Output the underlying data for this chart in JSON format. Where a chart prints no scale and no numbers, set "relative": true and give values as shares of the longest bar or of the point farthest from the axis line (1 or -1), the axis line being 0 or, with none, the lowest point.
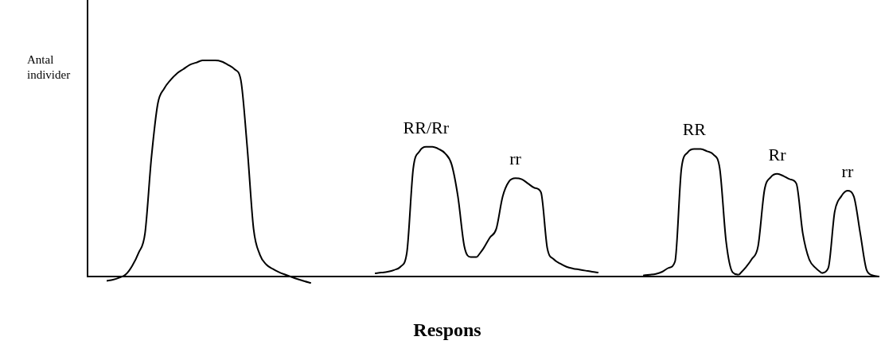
{
  "chart_data": {
    "type": "line",
    "xlabel": "Respons",
    "ylabel": "Antal individer",
    "relative": true,
    "legend": false,
    "tick_labels": false,
    "marker": "none",
    "categories": [
      null,
      null,
      null,
      null,
      null,
      null,
      null,
      null,
      null,
      null,
      null,
      null,
      null,
      null,
      null,
      null,
      null,
      null,
      null,
      null,
      null,
      null,
      null,
      null,
      null,
      null,
      null,
      null,
      null,
      null,
      null,
      null,
      null,
      null,
      null,
      null,
      null,
      null,
      null,
      null,
      null,
      null,
      null,
      null,
      null,
      null,
      null,
      null,
      null,
      null,
      null,
      null,
      null,
      null,
      null,
      null,
      null,
      null,
      null,
      null,
      null,
      null,
      null,
      null,
      null,
      null,
      null,
      null,
      null,
      null,
      null,
      null,
      null,
      null,
      null,
      null,
      null,
      null,
      null,
      null,
      null,
      null,
      null,
      null,
      null,
      null,
      null,
      null,
      null,
      null,
      null,
      null,
      null,
      null,
      null,
      null,
      null,
      null,
      null,
      null,
      null,
      null,
      null,
      null,
      null,
      null,
      null,
      null,
      null,
      null,
      null,
      null,
      null,
      null,
      null,
      null,
      null,
      null,
      null,
      null,
      null,
      null,
      null,
      null,
      null
    ],
    "series": [
      {
        "color": "#000000",
        "values": [
          null,
          null,
          null,
          -0.02,
          -0.015,
          -0.005,
          0.01,
          0.05,
          0.11,
          0.2,
          0.55,
          0.8,
          0.87,
          0.91,
          0.94,
          0.96,
          0.98,
          0.99,
          1.0,
          1.0,
          1.0,
          0.995,
          0.98,
          0.96,
          0.91,
          0.6,
          0.22,
          0.1,
          0.055,
          0.035,
          0.02,
          0.008,
          -0.003,
          -0.013,
          -0.022,
          -0.03,
          null,
          null,
          null,
          null,
          null,
          null,
          null,
          null,
          null,
          null,
          null,
          null,
          null,
          null,
          null,
          null,
          null,
          null,
          null,
          null,
          null,
          null,
          null,
          null,
          null,
          null,
          null,
          null,
          null,
          null,
          null,
          null,
          null,
          null,
          null,
          null,
          null,
          null,
          null,
          null,
          null,
          null,
          null,
          null,
          null,
          null,
          null,
          null,
          null,
          null,
          null,
          null,
          null,
          null,
          null,
          null,
          null,
          null,
          null,
          null,
          null,
          null,
          null,
          null,
          null,
          null,
          null,
          null,
          null,
          null,
          null,
          null,
          null,
          null,
          null,
          null,
          null,
          null,
          null,
          null,
          null,
          null,
          null,
          null,
          null,
          null,
          null,
          null,
          null
        ]
      },
      {
        "name": "RR/Rr",
        "color": "#000000",
        "values": [
          null,
          null,
          null,
          null,
          null,
          null,
          null,
          null,
          null,
          null,
          null,
          null,
          null,
          null,
          null,
          null,
          null,
          null,
          null,
          null,
          null,
          null,
          null,
          null,
          null,
          null,
          null,
          null,
          null,
          null,
          null,
          null,
          null,
          null,
          null,
          null,
          null,
          null,
          null,
          null,
          null,
          null,
          null,
          null,
          null,
          0.015,
          0.018,
          0.022,
          0.03,
          0.045,
          0.11,
          0.5,
          0.58,
          0.6,
          0.6,
          0.59,
          0.57,
          0.52,
          0.37,
          0.14,
          0.09,
          0.09,
          null,
          null,
          null,
          null,
          null,
          null,
          null,
          null,
          null,
          null,
          null,
          null,
          null,
          null,
          null,
          null,
          null,
          null,
          null,
          null,
          null,
          null,
          null,
          null,
          null,
          null,
          null,
          null,
          null,
          null,
          null,
          null,
          null,
          null,
          null,
          null,
          null,
          null,
          null,
          null,
          null,
          null,
          null,
          null,
          null,
          null,
          null,
          null,
          null,
          null,
          null,
          null,
          null,
          null,
          null,
          null,
          null,
          null,
          null,
          null,
          null,
          null,
          null
        ]
      },
      {
        "name": "rr",
        "color": "#000000",
        "values": [
          null,
          null,
          null,
          null,
          null,
          null,
          null,
          null,
          null,
          null,
          null,
          null,
          null,
          null,
          null,
          null,
          null,
          null,
          null,
          null,
          null,
          null,
          null,
          null,
          null,
          null,
          null,
          null,
          null,
          null,
          null,
          null,
          null,
          null,
          null,
          null,
          null,
          null,
          null,
          null,
          null,
          null,
          null,
          null,
          null,
          null,
          null,
          null,
          null,
          null,
          null,
          null,
          null,
          null,
          null,
          null,
          null,
          null,
          null,
          null,
          null,
          0.09,
          0.13,
          0.18,
          0.22,
          0.37,
          0.44,
          0.455,
          0.45,
          0.43,
          0.41,
          0.39,
          0.13,
          0.08,
          0.06,
          0.045,
          0.037,
          0.032,
          0.027,
          0.022,
          0.018,
          null,
          null,
          null,
          null,
          null,
          null,
          null,
          null,
          null,
          null,
          null,
          null,
          null,
          null,
          null,
          null,
          null,
          null,
          null,
          null,
          null,
          null,
          null,
          null,
          null,
          null,
          null,
          null,
          null,
          null,
          null,
          null,
          null,
          null,
          null,
          null,
          null,
          null,
          null,
          null,
          null,
          null,
          null,
          null
        ]
      },
      {
        "name": "RR",
        "color": "#000000",
        "values": [
          null,
          null,
          null,
          null,
          null,
          null,
          null,
          null,
          null,
          null,
          null,
          null,
          null,
          null,
          null,
          null,
          null,
          null,
          null,
          null,
          null,
          null,
          null,
          null,
          null,
          null,
          null,
          null,
          null,
          null,
          null,
          null,
          null,
          null,
          null,
          null,
          null,
          null,
          null,
          null,
          null,
          null,
          null,
          null,
          null,
          null,
          null,
          null,
          null,
          null,
          null,
          null,
          null,
          null,
          null,
          null,
          null,
          null,
          null,
          null,
          null,
          null,
          null,
          null,
          null,
          null,
          null,
          null,
          null,
          null,
          null,
          null,
          null,
          null,
          null,
          null,
          null,
          null,
          null,
          null,
          null,
          null,
          null,
          null,
          null,
          null,
          null,
          0.005,
          0.008,
          0.012,
          0.022,
          0.04,
          0.07,
          0.5,
          0.575,
          0.59,
          0.59,
          0.58,
          0.565,
          0.5,
          0.16,
          0.02,
          0.008,
          null,
          null,
          null,
          null,
          null,
          null,
          null,
          null,
          null,
          null,
          null,
          null,
          null,
          null,
          null,
          null,
          null,
          null,
          null,
          null,
          null,
          null
        ]
      },
      {
        "name": "Rr",
        "color": "#000000",
        "values": [
          null,
          null,
          null,
          null,
          null,
          null,
          null,
          null,
          null,
          null,
          null,
          null,
          null,
          null,
          null,
          null,
          null,
          null,
          null,
          null,
          null,
          null,
          null,
          null,
          null,
          null,
          null,
          null,
          null,
          null,
          null,
          null,
          null,
          null,
          null,
          null,
          null,
          null,
          null,
          null,
          null,
          null,
          null,
          null,
          null,
          null,
          null,
          null,
          null,
          null,
          null,
          null,
          null,
          null,
          null,
          null,
          null,
          null,
          null,
          null,
          null,
          null,
          null,
          null,
          null,
          null,
          null,
          null,
          null,
          null,
          null,
          null,
          null,
          null,
          null,
          null,
          null,
          null,
          null,
          null,
          null,
          null,
          null,
          null,
          null,
          null,
          null,
          null,
          null,
          null,
          null,
          null,
          null,
          null,
          null,
          null,
          null,
          null,
          null,
          null,
          null,
          null,
          0.008,
          0.04,
          0.08,
          0.14,
          0.4,
          0.46,
          0.475,
          0.465,
          0.45,
          0.43,
          0.2,
          0.08,
          0.04,
          0.015,
          null,
          null,
          null,
          null,
          null,
          null,
          null,
          null,
          null
        ]
      },
      {
        "name": "rr",
        "color": "#000000",
        "values": [
          null,
          null,
          null,
          null,
          null,
          null,
          null,
          null,
          null,
          null,
          null,
          null,
          null,
          null,
          null,
          null,
          null,
          null,
          null,
          null,
          null,
          null,
          null,
          null,
          null,
          null,
          null,
          null,
          null,
          null,
          null,
          null,
          null,
          null,
          null,
          null,
          null,
          null,
          null,
          null,
          null,
          null,
          null,
          null,
          null,
          null,
          null,
          null,
          null,
          null,
          null,
          null,
          null,
          null,
          null,
          null,
          null,
          null,
          null,
          null,
          null,
          null,
          null,
          null,
          null,
          null,
          null,
          null,
          null,
          null,
          null,
          null,
          null,
          null,
          null,
          null,
          null,
          null,
          null,
          null,
          null,
          null,
          null,
          null,
          null,
          null,
          null,
          null,
          null,
          null,
          null,
          null,
          null,
          null,
          null,
          null,
          null,
          null,
          null,
          null,
          null,
          null,
          null,
          null,
          null,
          null,
          null,
          null,
          null,
          null,
          null,
          null,
          null,
          null,
          null,
          0.015,
          0.04,
          0.3,
          0.37,
          0.397,
          0.37,
          0.2,
          0.03,
          0.005,
          0
        ]
      }
    ]
  }
}
